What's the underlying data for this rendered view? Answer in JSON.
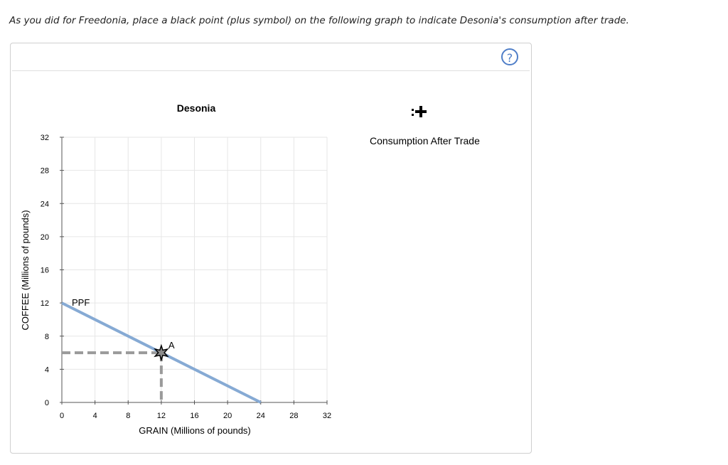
{
  "instruction": "As you did for Freedonia, place a black point (plus symbol) on the following graph to indicate Desonia's consumption after trade.",
  "help_label": "?",
  "legend": {
    "tool_label": "Consumption After Trade",
    "tool_icon": "plus-symbol-icon",
    "tool_color": "#000000"
  },
  "colors": {
    "ppf": "#86aad4",
    "dashed": "#9a9a9a",
    "grid": "#e6e6e6",
    "point_fill": "#8c8c8c",
    "help": "#4f7ec8"
  },
  "chart_data": {
    "type": "line",
    "title": "Desonia",
    "xlabel": "GRAIN (Millions of pounds)",
    "ylabel": "COFFEE (Millions of pounds)",
    "xlim": [
      0,
      32
    ],
    "ylim": [
      0,
      32
    ],
    "xticks": [
      0,
      4,
      8,
      12,
      16,
      20,
      24,
      28,
      32
    ],
    "yticks": [
      0,
      4,
      8,
      12,
      16,
      20,
      24,
      28,
      32
    ],
    "grid": true,
    "series": [
      {
        "name": "PPF",
        "x": [
          0,
          24
        ],
        "y": [
          12,
          0
        ]
      }
    ],
    "points": [
      {
        "label": "A",
        "x": 12,
        "y": 6
      }
    ],
    "dashed_guides": {
      "x": 12,
      "y": 6
    }
  }
}
